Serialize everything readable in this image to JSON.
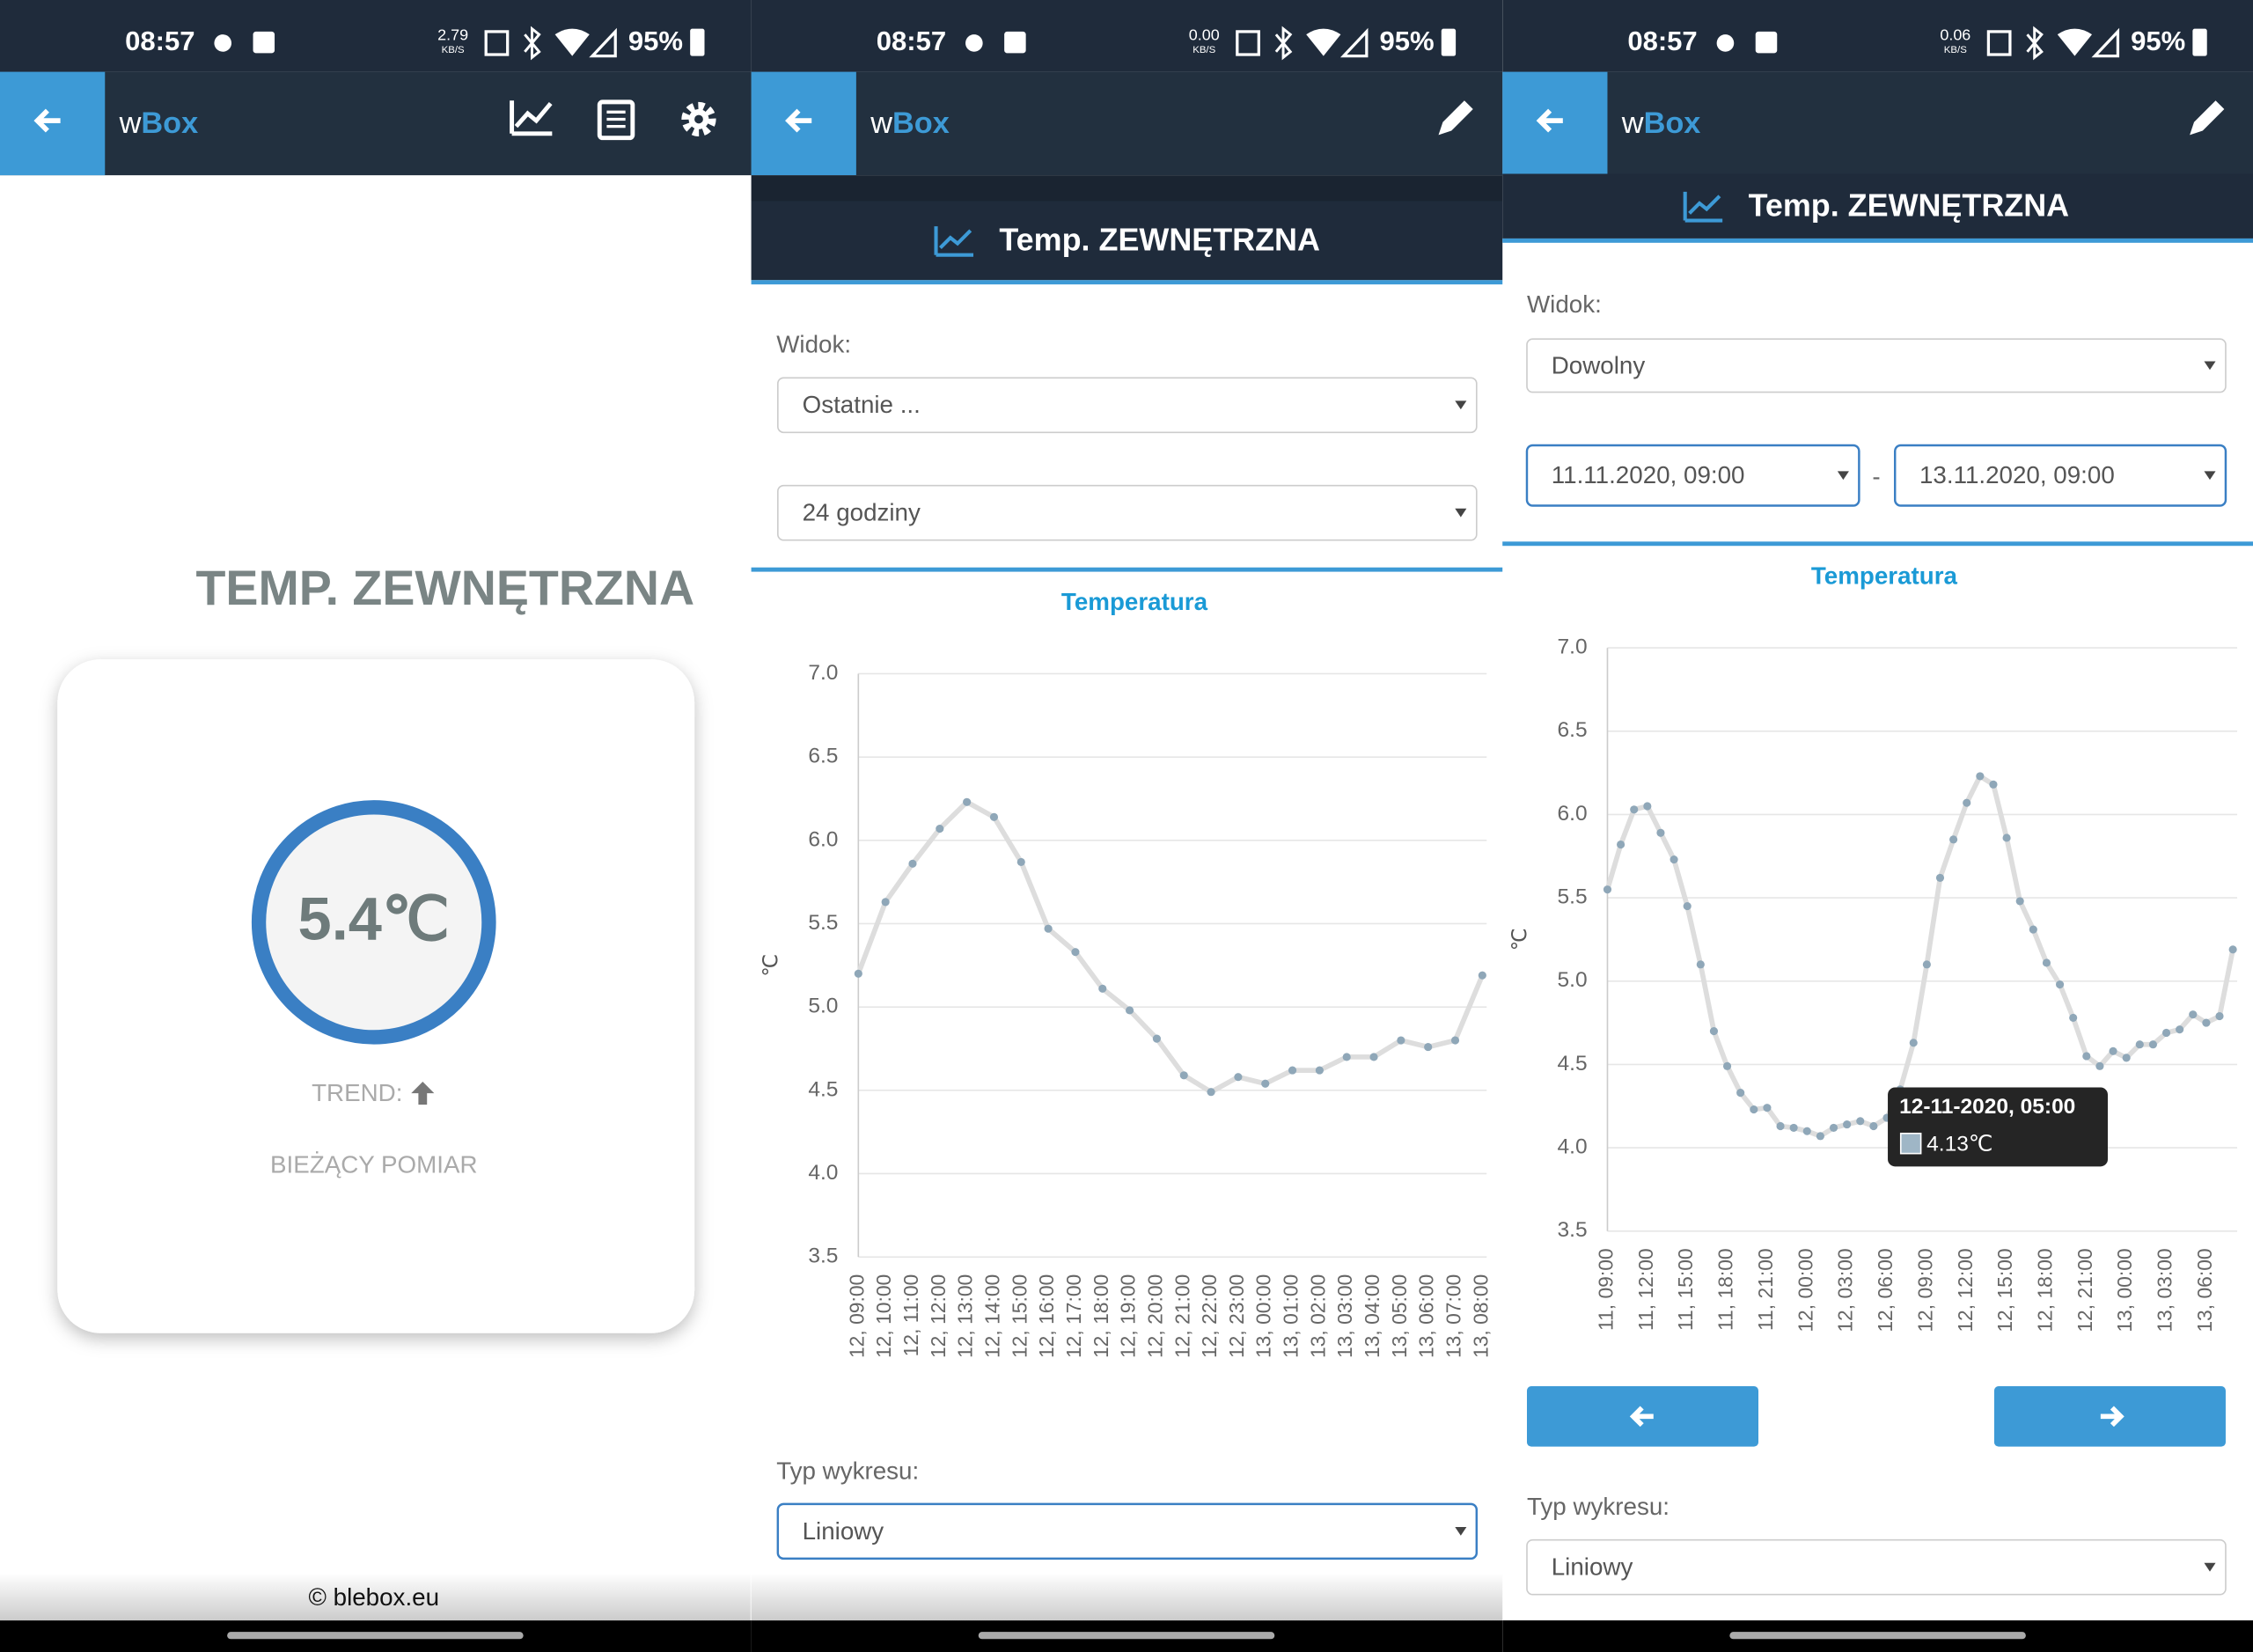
{
  "status_bars": [
    {
      "time": "08:57",
      "speed": "2.79",
      "speed_unit": "KB/S",
      "battery": "95%"
    },
    {
      "time": "08:57",
      "speed": "0.00",
      "speed_unit": "KB/S",
      "battery": "95%"
    },
    {
      "time": "08:57",
      "speed": "0.06",
      "speed_unit": "KB/S",
      "battery": "95%"
    }
  ],
  "screens": [
    {
      "app": {
        "prefix": "w",
        "name": "Box"
      },
      "heading": "TEMP. ZEWNĘTRZNA",
      "reading": "5.4℃",
      "trend": "TREND:",
      "caption": "BIEŻĄCY POMIAR",
      "footer": "© blebox.eu"
    },
    {
      "app": {
        "prefix": "w",
        "name": "Box"
      },
      "header": "Temp. ZEWNĘTRZNA",
      "view_label": "Widok:",
      "view_select": "Ostatnie ...",
      "range_select": "24 godziny",
      "chart": {
        "type": "line",
        "title": "Temperatura",
        "y_label": "℃",
        "categories": [
          "12, 09:00",
          "12, 10:00",
          "12, 11:00",
          "12, 12:00",
          "12, 13:00",
          "12, 14:00",
          "12, 15:00",
          "12, 16:00",
          "12, 17:00",
          "12, 18:00",
          "12, 19:00",
          "12, 20:00",
          "12, 21:00",
          "12, 22:00",
          "12, 23:00",
          "13, 00:00",
          "13, 01:00",
          "13, 02:00",
          "13, 03:00",
          "13, 04:00",
          "13, 05:00",
          "13, 06:00",
          "13, 07:00",
          "13, 08:00"
        ],
        "values": [
          5.2,
          5.63,
          5.86,
          6.07,
          6.23,
          6.14,
          5.87,
          5.47,
          5.33,
          5.11,
          4.98,
          4.81,
          4.59,
          4.49,
          4.58,
          4.54,
          4.62,
          4.62,
          4.7,
          4.7,
          4.8,
          4.76,
          4.8,
          5.19
        ],
        "color": "#dddddd",
        "marker_color": "#8fa7b8",
        "ylim": [
          3.5,
          7
        ],
        "yticks": [
          3.5,
          {
            "value": 4,
            "label": "4.0"
          },
          4.5,
          {
            "value": 5,
            "label": "5.0"
          },
          5.5,
          {
            "value": 6,
            "label": "6.0"
          },
          6.5,
          {
            "value": 7,
            "label": "7.0"
          }
        ],
        "grid": true
      },
      "type_label": "Typ wykresu:",
      "type_select": "Liniowy"
    },
    {
      "app": {
        "prefix": "w",
        "name": "Box"
      },
      "header": "Temp. ZEWNĘTRZNA",
      "view_label": "Widok:",
      "view_select": "Dowolny",
      "from": "11.11.2020, 09:00",
      "separator": "-",
      "to": "13.11.2020, 09:00",
      "chart": {
        "type": "line",
        "title": "Temperatura",
        "y_label": "℃",
        "categories": [
          "11, 09:00",
          null,
          null,
          "11, 12:00",
          null,
          null,
          "11, 15:00",
          null,
          null,
          "11, 18:00",
          null,
          null,
          "11, 21:00",
          null,
          null,
          "12, 00:00",
          null,
          null,
          "12, 03:00",
          null,
          null,
          "12, 06:00",
          null,
          null,
          "12, 09:00",
          null,
          null,
          "12, 12:00",
          null,
          null,
          "12, 15:00",
          null,
          null,
          "12, 18:00",
          null,
          null,
          "12, 21:00",
          null,
          null,
          "13, 00:00",
          null,
          null,
          "13, 03:00",
          null,
          null,
          "13, 06:00",
          null,
          null
        ],
        "values": [
          5.55,
          5.82,
          6.03,
          6.05,
          5.89,
          5.73,
          5.45,
          5.1,
          4.7,
          4.49,
          4.33,
          4.23,
          4.24,
          4.13,
          4.12,
          4.1,
          4.07,
          4.12,
          4.14,
          4.16,
          4.13,
          4.18,
          4.35,
          4.63,
          5.1,
          5.62,
          5.85,
          6.07,
          6.23,
          6.18,
          5.86,
          5.48,
          5.31,
          5.11,
          4.98,
          4.78,
          4.55,
          4.49,
          4.58,
          4.54,
          4.62,
          4.62,
          4.69,
          4.71,
          4.8,
          4.75,
          4.79,
          5.19
        ],
        "color": "#dddddd",
        "marker_color": "#8fa7b8",
        "ylim": [
          3.5,
          7
        ],
        "yticks": [
          3.5,
          {
            "value": 4,
            "label": "4.0"
          },
          4.5,
          {
            "value": 5,
            "label": "5.0"
          },
          5.5,
          {
            "value": 6,
            "label": "6.0"
          },
          6.5,
          {
            "value": 7,
            "label": "7.0"
          }
        ],
        "grid": true
      },
      "tooltip": {
        "title": "12-11-2020, 05:00",
        "text": "4.13℃"
      },
      "type_label": "Typ wykresu:",
      "type_select": "Liniowy"
    }
  ]
}
